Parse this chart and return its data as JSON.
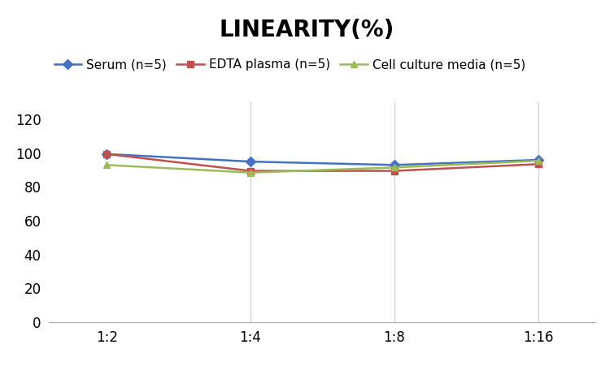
{
  "title": "LINEARITY(%)",
  "x_labels": [
    "1:2",
    "1:4",
    "1:8",
    "1:16"
  ],
  "x_positions": [
    0,
    1,
    2,
    3
  ],
  "series": [
    {
      "label": "Serum (n=5)",
      "color": "#4472C4",
      "marker": "D",
      "values": [
        99.5,
        95.0,
        93.0,
        96.0
      ]
    },
    {
      "label": "EDTA plasma (n=5)",
      "color": "#C0504D",
      "marker": "s",
      "values": [
        99.5,
        89.5,
        89.5,
        93.5
      ]
    },
    {
      "label": "Cell culture media (n=5)",
      "color": "#9BBB59",
      "marker": "^",
      "values": [
        93.0,
        88.5,
        91.5,
        95.5
      ]
    }
  ],
  "ylim": [
    0,
    130
  ],
  "yticks": [
    0,
    20,
    40,
    60,
    80,
    100,
    120
  ],
  "background_color": "#FFFFFF",
  "grid_color": "#CCCCCC",
  "title_fontsize": 20,
  "legend_fontsize": 11,
  "tick_fontsize": 12
}
